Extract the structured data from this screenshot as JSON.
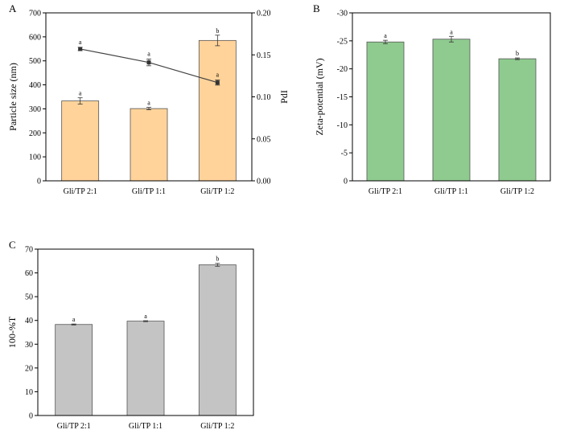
{
  "chart_data": [
    {
      "panel": "A",
      "type": "bar",
      "categories": [
        "Gli/TP 2:1",
        "Gli/TP 1:1",
        "Gli/TP 1:2"
      ],
      "series": [
        {
          "name": "Particle size",
          "type": "bar",
          "axis": "left",
          "values": [
            333,
            301,
            585
          ],
          "errors": [
            13,
            5,
            22
          ],
          "labels": [
            "a",
            "a",
            "b"
          ]
        },
        {
          "name": "PdI",
          "type": "line",
          "axis": "right",
          "values": [
            0.157,
            0.141,
            0.117
          ],
          "errors": [
            0.002,
            0.004,
            0.003
          ],
          "labels": [
            "a",
            "a",
            "a"
          ]
        }
      ],
      "ylabel": "Particle size (nm)",
      "ylim": [
        0,
        700
      ],
      "yticks": [
        "0",
        "100",
        "200",
        "300",
        "400",
        "500",
        "600",
        "700"
      ],
      "y2label": "PdI",
      "y2lim": [
        0,
        0.2
      ],
      "y2ticks": [
        "0.00",
        "0.05",
        "0.10",
        "0.15",
        "0.20"
      ],
      "bar_color": "#FFD39A"
    },
    {
      "panel": "B",
      "type": "bar",
      "categories": [
        "Gli/TP 2:1",
        "Gli/TP 1:1",
        "Gli/TP 1:2"
      ],
      "values": [
        -24.8,
        -25.3,
        -21.8
      ],
      "errors": [
        0.3,
        0.5,
        0.15
      ],
      "labels": [
        "a",
        "a",
        "b"
      ],
      "ylabel": "Zeta-potential (mV)",
      "ylim": [
        0,
        -30
      ],
      "yticks": [
        "0",
        "-5",
        "-10",
        "-15",
        "-20",
        "-25",
        "-30"
      ],
      "bar_color": "#8FCB8F"
    },
    {
      "panel": "C",
      "type": "bar",
      "categories": [
        "Gli/TP 2:1",
        "Gli/TP 1:1",
        "Gli/TP 1:2"
      ],
      "values": [
        38.3,
        39.7,
        63.4
      ],
      "errors": [
        0.2,
        0.2,
        0.6
      ],
      "labels": [
        "a",
        "a",
        "b"
      ],
      "ylabel": "100-%T",
      "ylim": [
        0,
        70
      ],
      "yticks": [
        "0",
        "10",
        "20",
        "30",
        "40",
        "50",
        "60",
        "70"
      ],
      "bar_color": "#C4C4C4"
    }
  ]
}
